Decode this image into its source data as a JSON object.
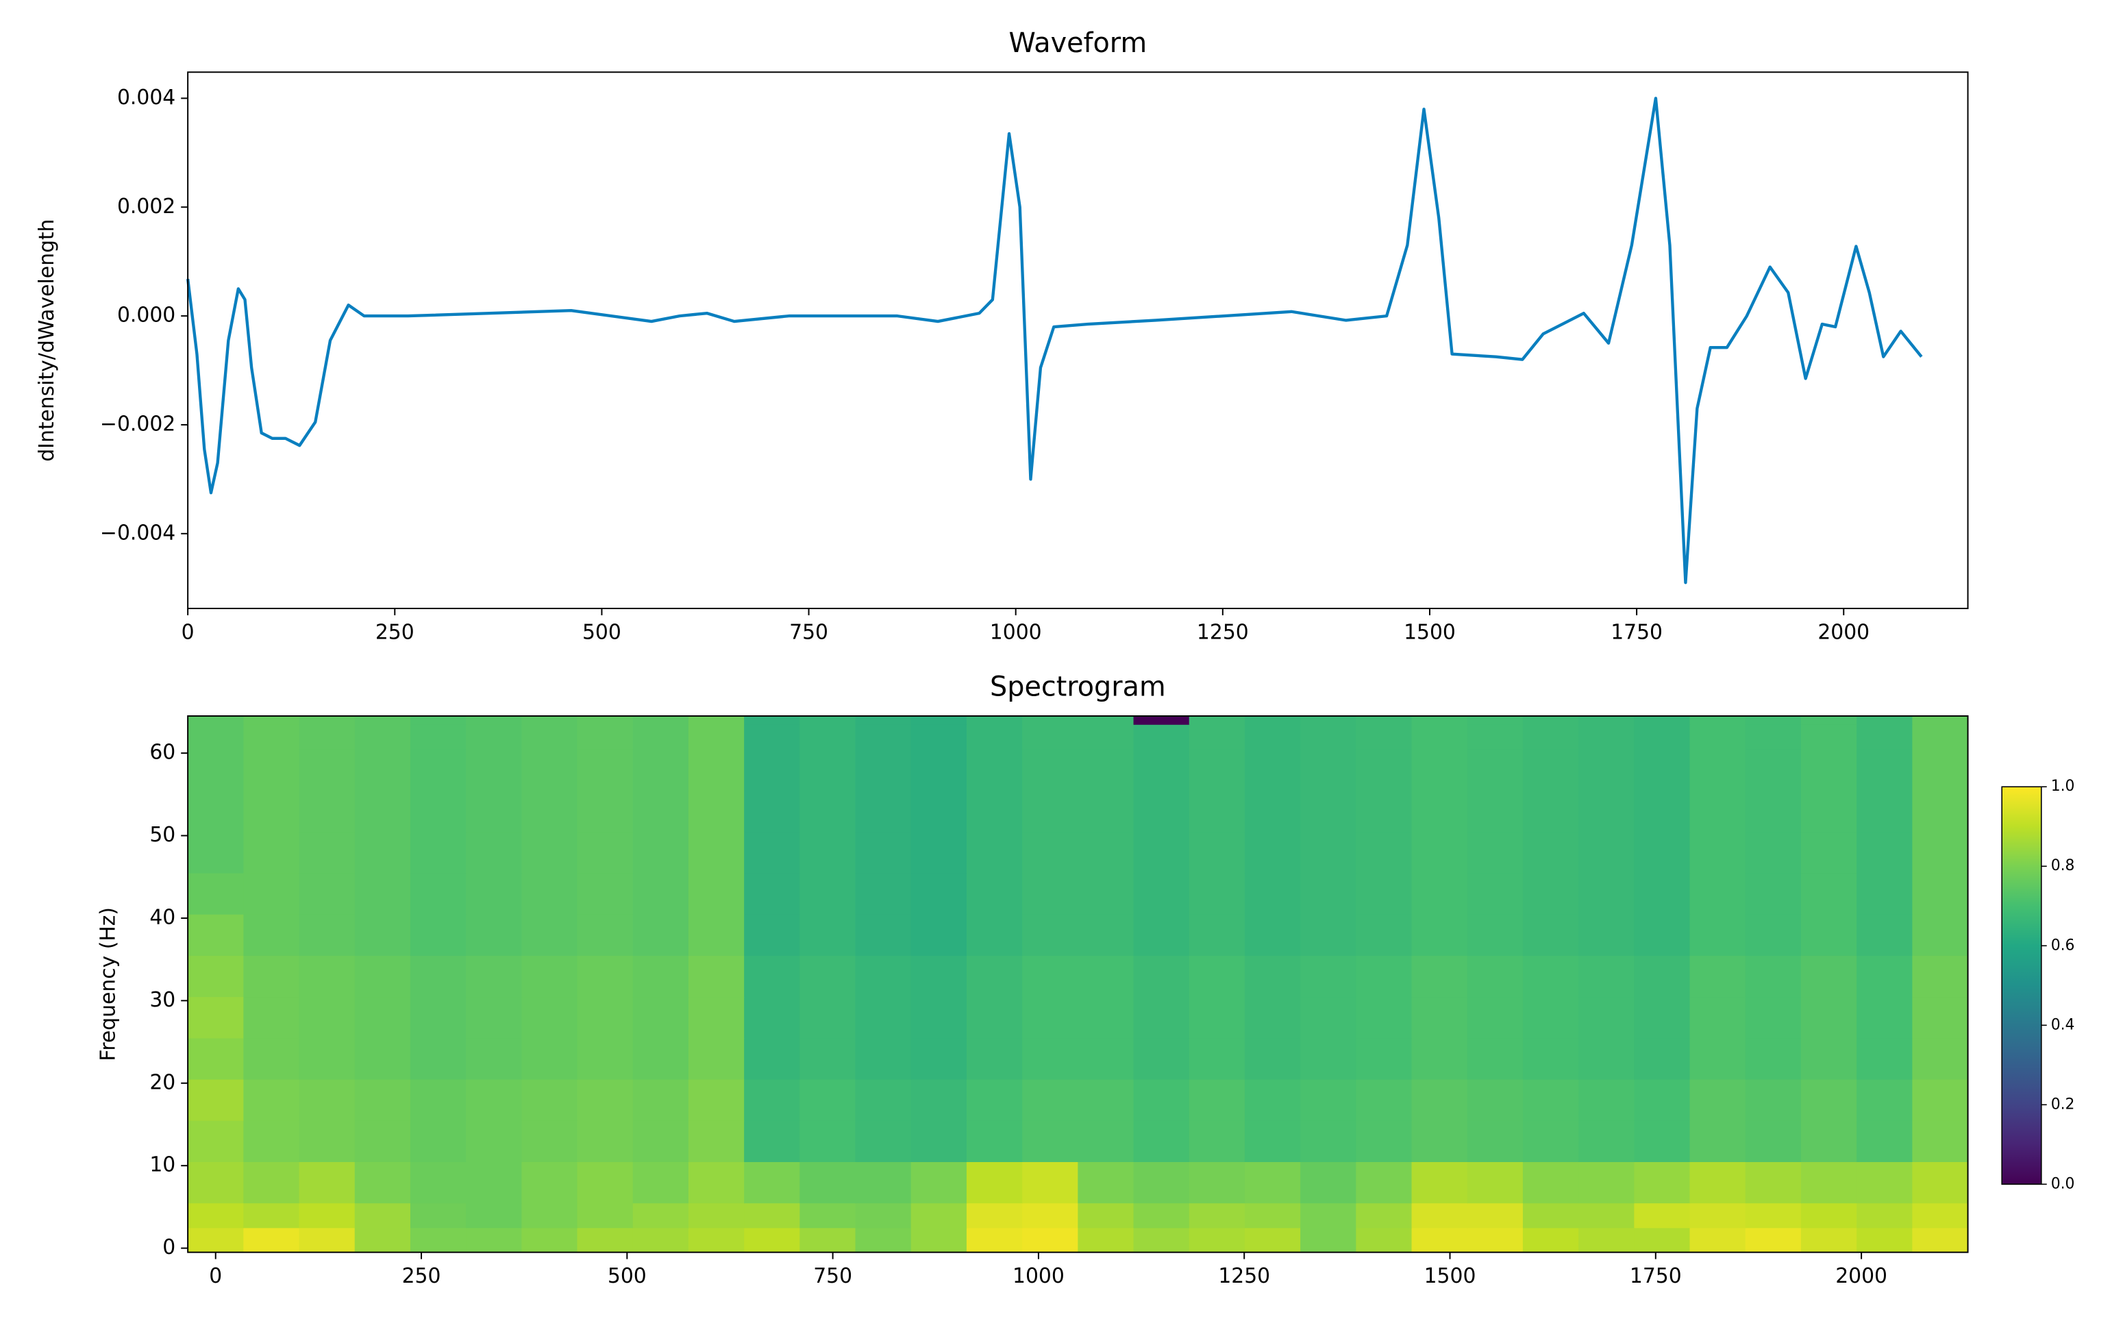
{
  "chart_data": [
    {
      "type": "line",
      "title": "Waveform",
      "ylabel": "dIntensity/dWavelength",
      "color": "#0a7fbf",
      "x": [
        0,
        11,
        20,
        28,
        36,
        49,
        61,
        69,
        77,
        89,
        102,
        118,
        135,
        154,
        172,
        194,
        213,
        266,
        463,
        560,
        594,
        627,
        660,
        726,
        857,
        906,
        956,
        972,
        992,
        1005,
        1018,
        1030,
        1046,
        1087,
        1169,
        1333,
        1399,
        1448,
        1473,
        1493,
        1511,
        1527,
        1580,
        1612,
        1637,
        1686,
        1716,
        1744,
        1773,
        1790,
        1809,
        1823,
        1839,
        1859,
        1883,
        1911,
        1933,
        1954,
        1974,
        1990,
        2015,
        2031,
        2048,
        2069,
        2094
      ],
      "values": [
        0.00068,
        -0.0007,
        -0.00245,
        -0.00325,
        -0.0027,
        -0.00045,
        0.0005,
        0.0003,
        -0.00095,
        -0.00215,
        -0.00225,
        -0.00225,
        -0.00238,
        -0.00195,
        -0.00045,
        0.0002,
        0,
        0,
        0.0001,
        -0.0001,
        0,
        5e-05,
        -0.0001,
        0,
        0,
        -0.0001,
        5e-05,
        0.0003,
        0.00335,
        0.002,
        -0.003,
        -0.00095,
        -0.0002,
        -0.00015,
        -8e-05,
        8e-05,
        -8e-05,
        0,
        0.0013,
        0.0038,
        0.0018,
        -0.0007,
        -0.00075,
        -0.0008,
        -0.00033,
        5e-05,
        -0.0005,
        0.0013,
        0.004,
        0.0013,
        -0.0049,
        -0.0017,
        -0.00058,
        -0.00058,
        0,
        0.0009,
        0.00043,
        -0.00115,
        -0.00015,
        -0.0002,
        0.00128,
        0.00043,
        -0.00075,
        -0.00028,
        -0.00075
      ],
      "xlim": [
        0,
        2150
      ],
      "xticks": [
        0,
        250,
        500,
        750,
        1000,
        1250,
        1500,
        1750,
        2000
      ],
      "ylim": [
        -0.005375,
        0.00448
      ],
      "yticks": [
        {
          "value": -0.004,
          "label": "−0.004"
        },
        {
          "value": -0.002,
          "label": "−0.002"
        },
        {
          "value": 0,
          "label": "0.000"
        },
        0.002,
        0.004
      ]
    },
    {
      "type": "heatmap",
      "title": "Spectrogram",
      "ylabel": "Frequency (Hz)",
      "colormap": "viridis",
      "x_edges": [
        -33.8,
        33.8,
        101.4,
        169,
        236.6,
        304.2,
        371.8,
        439.4,
        507,
        574.6,
        642.2,
        709.8,
        777.4,
        845,
        912.6,
        980.2,
        1047.8,
        1115.4,
        1183,
        1250.6,
        1318.2,
        1385.8,
        1453.4,
        1521,
        1588.6,
        1656.2,
        1723.8,
        1791.4,
        1859,
        1926.6,
        1994.2,
        2061.8,
        2129.4
      ],
      "y_edges": [
        -0.5,
        2.5,
        5.5,
        10.5,
        15.5,
        20.5,
        25.5,
        30.5,
        35.5,
        40.5,
        45.5,
        50.5,
        55.5,
        60.5,
        63.5,
        64.5
      ],
      "z": [
        [
          0.93,
          0.97,
          0.95,
          0.85,
          0.8,
          0.8,
          0.82,
          0.86,
          0.86,
          0.88,
          0.9,
          0.85,
          0.8,
          0.84,
          0.97,
          0.98,
          0.88,
          0.85,
          0.87,
          0.88,
          0.8,
          0.86,
          0.96,
          0.96,
          0.9,
          0.88,
          0.88,
          0.95,
          0.97,
          0.93,
          0.9,
          0.95
        ],
        [
          0.9,
          0.88,
          0.9,
          0.85,
          0.78,
          0.77,
          0.8,
          0.82,
          0.84,
          0.86,
          0.86,
          0.8,
          0.79,
          0.84,
          0.95,
          0.96,
          0.86,
          0.82,
          0.85,
          0.84,
          0.8,
          0.85,
          0.94,
          0.94,
          0.86,
          0.86,
          0.92,
          0.93,
          0.92,
          0.9,
          0.88,
          0.92
        ],
        [
          0.86,
          0.83,
          0.86,
          0.8,
          0.77,
          0.77,
          0.8,
          0.82,
          0.8,
          0.84,
          0.8,
          0.76,
          0.76,
          0.8,
          0.9,
          0.92,
          0.8,
          0.78,
          0.79,
          0.8,
          0.76,
          0.8,
          0.88,
          0.87,
          0.82,
          0.82,
          0.84,
          0.88,
          0.86,
          0.84,
          0.84,
          0.88
        ],
        [
          0.84,
          0.8,
          0.79,
          0.78,
          0.76,
          0.77,
          0.78,
          0.79,
          0.78,
          0.81,
          0.68,
          0.7,
          0.68,
          0.67,
          0.7,
          0.72,
          0.72,
          0.7,
          0.72,
          0.7,
          0.71,
          0.72,
          0.74,
          0.73,
          0.72,
          0.71,
          0.7,
          0.74,
          0.73,
          0.75,
          0.72,
          0.8
        ],
        [
          0.86,
          0.8,
          0.79,
          0.78,
          0.76,
          0.77,
          0.78,
          0.79,
          0.78,
          0.81,
          0.68,
          0.7,
          0.68,
          0.67,
          0.7,
          0.72,
          0.72,
          0.7,
          0.72,
          0.7,
          0.71,
          0.72,
          0.74,
          0.73,
          0.72,
          0.71,
          0.7,
          0.74,
          0.73,
          0.75,
          0.72,
          0.8
        ],
        [
          0.82,
          0.78,
          0.77,
          0.76,
          0.74,
          0.75,
          0.76,
          0.77,
          0.76,
          0.79,
          0.66,
          0.68,
          0.66,
          0.65,
          0.68,
          0.7,
          0.7,
          0.68,
          0.7,
          0.68,
          0.69,
          0.7,
          0.72,
          0.71,
          0.7,
          0.69,
          0.68,
          0.72,
          0.71,
          0.73,
          0.7,
          0.78
        ],
        [
          0.84,
          0.78,
          0.77,
          0.76,
          0.74,
          0.75,
          0.76,
          0.77,
          0.76,
          0.79,
          0.66,
          0.68,
          0.66,
          0.65,
          0.68,
          0.7,
          0.7,
          0.68,
          0.7,
          0.68,
          0.69,
          0.7,
          0.72,
          0.71,
          0.7,
          0.69,
          0.68,
          0.72,
          0.71,
          0.73,
          0.7,
          0.78
        ],
        [
          0.82,
          0.78,
          0.77,
          0.76,
          0.74,
          0.75,
          0.76,
          0.77,
          0.76,
          0.79,
          0.66,
          0.68,
          0.66,
          0.65,
          0.68,
          0.7,
          0.7,
          0.68,
          0.7,
          0.68,
          0.69,
          0.7,
          0.72,
          0.71,
          0.7,
          0.69,
          0.68,
          0.72,
          0.71,
          0.73,
          0.7,
          0.78
        ],
        [
          0.8,
          0.76,
          0.75,
          0.74,
          0.72,
          0.73,
          0.74,
          0.75,
          0.74,
          0.77,
          0.64,
          0.66,
          0.64,
          0.63,
          0.66,
          0.68,
          0.68,
          0.66,
          0.68,
          0.66,
          0.67,
          0.68,
          0.7,
          0.69,
          0.68,
          0.67,
          0.66,
          0.7,
          0.69,
          0.71,
          0.68,
          0.76
        ],
        [
          0.76,
          0.76,
          0.75,
          0.74,
          0.72,
          0.73,
          0.74,
          0.75,
          0.74,
          0.77,
          0.64,
          0.66,
          0.64,
          0.63,
          0.66,
          0.68,
          0.68,
          0.66,
          0.68,
          0.66,
          0.67,
          0.68,
          0.7,
          0.69,
          0.68,
          0.67,
          0.66,
          0.7,
          0.69,
          0.71,
          0.68,
          0.76
        ],
        [
          0.74,
          0.76,
          0.75,
          0.74,
          0.72,
          0.73,
          0.74,
          0.75,
          0.74,
          0.77,
          0.64,
          0.66,
          0.64,
          0.63,
          0.66,
          0.68,
          0.68,
          0.66,
          0.68,
          0.66,
          0.67,
          0.68,
          0.7,
          0.69,
          0.68,
          0.67,
          0.66,
          0.7,
          0.69,
          0.71,
          0.68,
          0.76
        ],
        [
          0.74,
          0.76,
          0.75,
          0.74,
          0.72,
          0.73,
          0.74,
          0.75,
          0.74,
          0.77,
          0.64,
          0.66,
          0.64,
          0.63,
          0.66,
          0.68,
          0.68,
          0.66,
          0.68,
          0.66,
          0.67,
          0.68,
          0.7,
          0.69,
          0.68,
          0.67,
          0.66,
          0.7,
          0.69,
          0.71,
          0.68,
          0.76
        ],
        [
          0.74,
          0.76,
          0.75,
          0.74,
          0.72,
          0.73,
          0.74,
          0.75,
          0.74,
          0.77,
          0.64,
          0.66,
          0.64,
          0.63,
          0.66,
          0.68,
          0.68,
          0.66,
          0.68,
          0.66,
          0.67,
          0.68,
          0.7,
          0.69,
          0.68,
          0.67,
          0.66,
          0.7,
          0.69,
          0.71,
          0.68,
          0.76
        ],
        [
          0.74,
          0.76,
          0.75,
          0.74,
          0.72,
          0.73,
          0.74,
          0.75,
          0.74,
          0.77,
          0.64,
          0.66,
          0.64,
          0.63,
          0.66,
          0.68,
          0.68,
          0.66,
          0.68,
          0.66,
          0.67,
          0.68,
          0.7,
          0.69,
          0.68,
          0.67,
          0.66,
          0.7,
          0.69,
          0.71,
          0.68,
          0.76
        ],
        [
          0.74,
          0.76,
          0.75,
          0.74,
          0.72,
          0.73,
          0.74,
          0.75,
          0.74,
          0.77,
          0.64,
          0.66,
          0.64,
          0.63,
          0.66,
          0.68,
          0.68,
          0.0,
          0.68,
          0.66,
          0.67,
          0.68,
          0.7,
          0.69,
          0.68,
          0.67,
          0.66,
          0.7,
          0.69,
          0.71,
          0.68,
          0.76
        ]
      ],
      "xlim": [
        -33.8,
        2129.4
      ],
      "xticks": [
        0,
        250,
        500,
        750,
        1000,
        1250,
        1500,
        1750,
        2000
      ],
      "ylim": [
        -0.5,
        64.5
      ],
      "yticks": [
        0,
        10,
        20,
        30,
        40,
        50,
        60
      ],
      "clim": [
        0,
        1
      ],
      "cticks": [
        {
          "value": 0,
          "label": "0.0"
        },
        {
          "value": 0.2,
          "label": "0.2"
        },
        {
          "value": 0.4,
          "label": "0.4"
        },
        {
          "value": 0.6,
          "label": "0.6"
        },
        {
          "value": 0.8,
          "label": "0.8"
        },
        {
          "value": 1,
          "label": "1.0"
        }
      ]
    }
  ]
}
